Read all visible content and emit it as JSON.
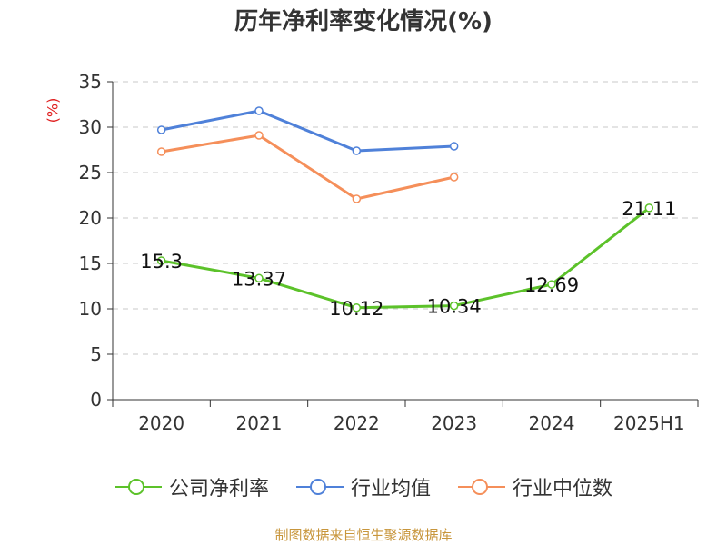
{
  "title": "历年净利率变化情况(%)",
  "unit_label": "(%)",
  "source": "制图数据来自恒生聚源数据库",
  "chart_data": {
    "type": "line",
    "title": "历年净利率变化情况(%)",
    "ylabel": "(%)",
    "categories": [
      "2020",
      "2021",
      "2022",
      "2023",
      "2024",
      "2025H1"
    ],
    "ylim": [
      0,
      35
    ],
    "yticks": [
      0,
      5,
      10,
      15,
      20,
      25,
      30,
      35
    ],
    "grid": true,
    "legend_position": "bottom",
    "series": [
      {
        "name": "公司净利率",
        "color": "#5cc22a",
        "values": [
          15.3,
          13.37,
          10.12,
          10.34,
          12.69,
          21.11
        ],
        "labels": [
          "15.3",
          "13.37",
          "10.12",
          "10.34",
          "12.69",
          "21.11"
        ]
      },
      {
        "name": "行业均值",
        "color": "#4f81d9",
        "values": [
          29.7,
          31.8,
          27.4,
          27.9,
          null,
          null
        ]
      },
      {
        "name": "行业中位数",
        "color": "#f58f5a",
        "values": [
          27.3,
          29.1,
          22.1,
          24.5,
          null,
          null
        ]
      }
    ]
  }
}
